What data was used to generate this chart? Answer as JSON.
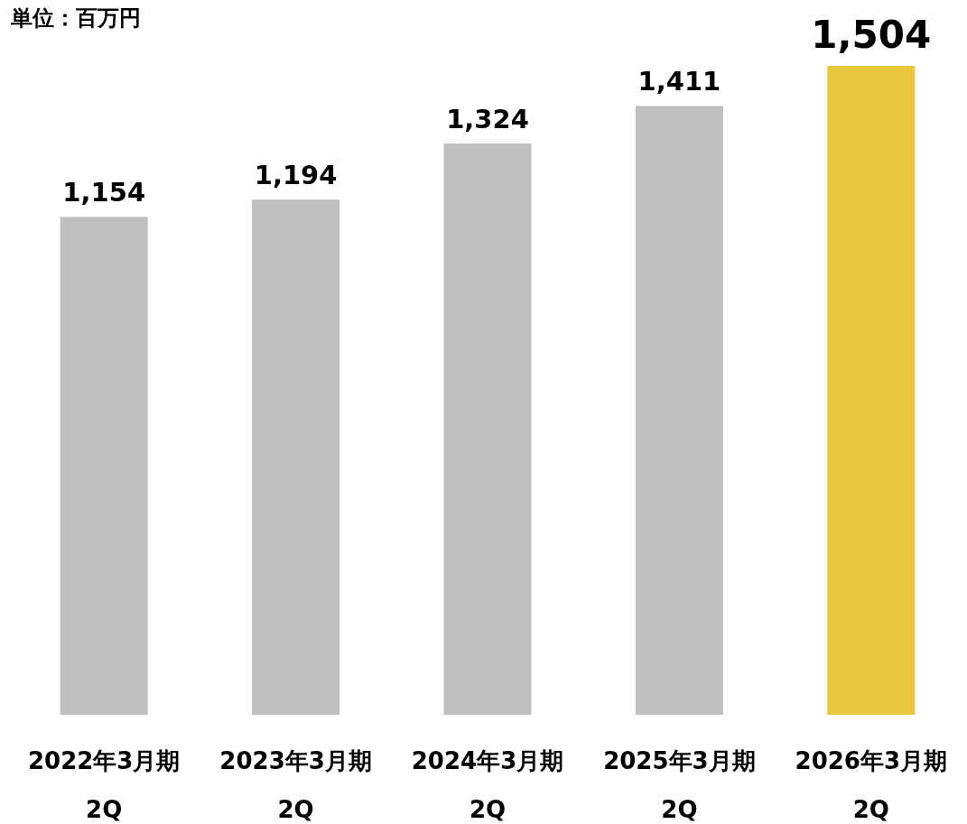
{
  "chart_data": {
    "type": "bar",
    "subtitle": "単位：百万円",
    "categories": [
      "2022年3月期\n2Q",
      "2023年3月期\n2Q",
      "2024年3月期\n2Q",
      "2025年3月期\n2Q",
      "2026年3月期\n2Q"
    ],
    "values": [
      1154,
      1194,
      1324,
      1411,
      1504
    ],
    "colors": [
      "#bfbfbf",
      "#bfbfbf",
      "#bfbfbf",
      "#bfbfbf",
      "#e9c73d"
    ],
    "value_labels": [
      "1,154",
      "1,194",
      "1,324",
      "1,411",
      "1,504"
    ]
  }
}
